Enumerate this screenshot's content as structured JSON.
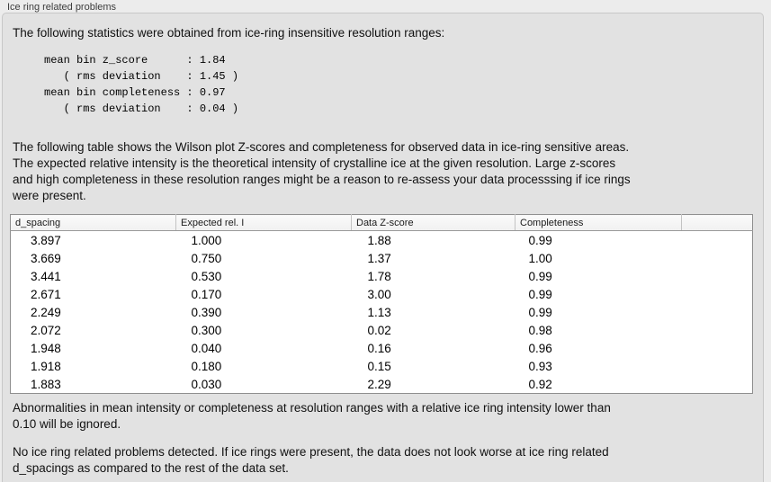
{
  "panel": {
    "title": "Ice ring related problems",
    "intro": "The following statistics were obtained from ice-ring insensitive resolution ranges:",
    "stats_block": "mean bin z_score      : 1.84\n   ( rms deviation    : 1.45 )\nmean bin completeness : 0.97\n   ( rms deviation    : 0.04 )",
    "stats": {
      "mean_bin_z_score": "1.84",
      "z_score_rms_deviation": "1.45",
      "mean_bin_completeness": "0.97",
      "completeness_rms_deviation": "0.04"
    },
    "table_description": "The following table shows the Wilson plot Z-scores and completeness for observed data in ice-ring sensitive areas.\nThe expected relative intensity is the theoretical intensity of crystalline ice at the given resolution. Large z-scores\nand high completeness in these resolution ranges might be a reason to re-assess your data processsing if ice rings\nwere present.",
    "ignore_note": "Abnormalities in mean intensity or completeness at resolution ranges with a relative ice ring intensity lower than\n0.10 will be ignored.",
    "conclusion": "No ice ring related problems detected. If ice rings were present, the data does not look worse at ice ring related\nd_spacings as compared to the rest of the data set."
  },
  "table": {
    "columns": [
      "d_spacing",
      "Expected rel. I",
      "Data Z-score",
      "Completeness",
      ""
    ],
    "rows": [
      [
        "3.897",
        "1.000",
        "1.88",
        "0.99",
        ""
      ],
      [
        "3.669",
        "0.750",
        "1.37",
        "1.00",
        ""
      ],
      [
        "3.441",
        "0.530",
        "1.78",
        "0.99",
        ""
      ],
      [
        "2.671",
        "0.170",
        "3.00",
        "0.99",
        ""
      ],
      [
        "2.249",
        "0.390",
        "1.13",
        "0.99",
        ""
      ],
      [
        "2.072",
        "0.300",
        "0.02",
        "0.98",
        ""
      ],
      [
        "1.948",
        "0.040",
        "0.16",
        "0.96",
        ""
      ],
      [
        "1.918",
        "0.180",
        "0.15",
        "0.93",
        ""
      ],
      [
        "1.883",
        "0.030",
        "2.29",
        "0.92",
        ""
      ]
    ]
  },
  "colors": {
    "outer_background": "#ececec",
    "panel_background": "#e2e2e2",
    "panel_border": "#c7c7c7",
    "table_border": "#8f8f8f",
    "table_header_background": "#f5f5f5",
    "text": "#111111"
  }
}
